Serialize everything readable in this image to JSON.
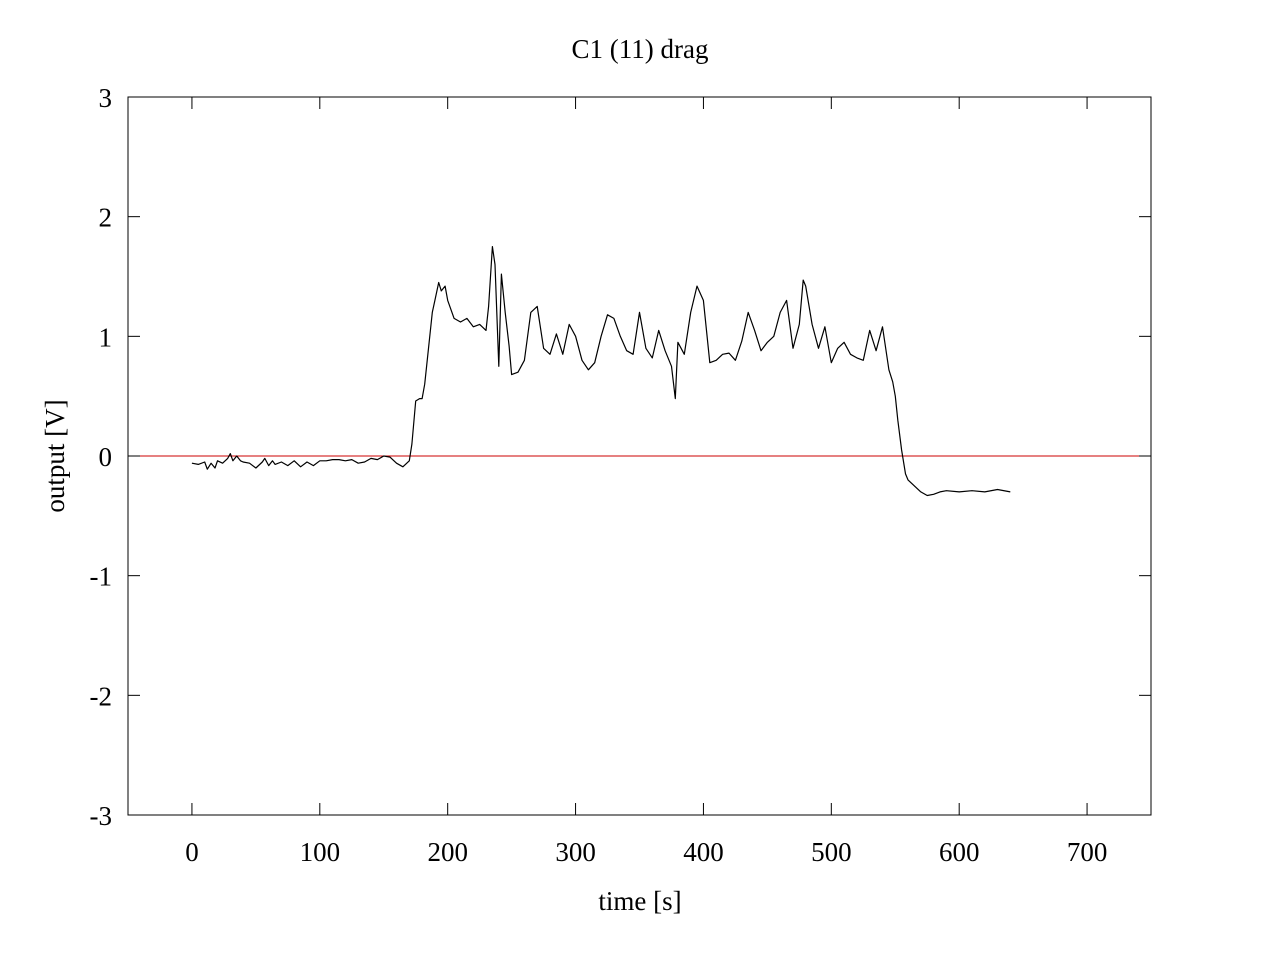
{
  "chart_data": {
    "type": "line",
    "title": "C1 (11) drag",
    "xlabel": "time [s]",
    "ylabel": "output [V]",
    "xlim": [
      -50,
      750
    ],
    "ylim": [
      -3,
      3
    ],
    "xticks": [
      0,
      100,
      200,
      300,
      400,
      500,
      600,
      700
    ],
    "yticks": [
      -3,
      -2,
      -1,
      0,
      1,
      2,
      3
    ],
    "xtick_labels": [
      "0",
      "100",
      "200",
      "300",
      "400",
      "500",
      "600",
      "700"
    ],
    "ytick_labels": [
      "-3",
      "-2",
      "-1",
      "0",
      "1",
      "2",
      "3"
    ],
    "grid": false,
    "legend": "none",
    "reference_line": {
      "y": 0,
      "color": "#cc0000"
    },
    "series": [
      {
        "color": "#000000",
        "x": [
          0,
          5,
          10,
          12,
          15,
          18,
          20,
          24,
          28,
          30,
          32,
          35,
          38,
          40,
          45,
          50,
          55,
          57,
          60,
          63,
          65,
          70,
          75,
          80,
          85,
          90,
          95,
          100,
          105,
          110,
          115,
          120,
          125,
          130,
          135,
          140,
          145,
          150,
          155,
          160,
          165,
          170,
          172,
          175,
          178,
          180,
          182,
          185,
          188,
          190,
          193,
          195,
          198,
          200,
          205,
          210,
          215,
          220,
          225,
          230,
          232,
          235,
          237,
          240,
          242,
          245,
          248,
          250,
          255,
          260,
          265,
          270,
          275,
          280,
          285,
          290,
          295,
          300,
          305,
          310,
          315,
          320,
          325,
          330,
          335,
          340,
          345,
          350,
          355,
          360,
          365,
          370,
          375,
          378,
          380,
          385,
          390,
          395,
          400,
          405,
          410,
          415,
          420,
          425,
          430,
          435,
          440,
          445,
          450,
          455,
          460,
          465,
          470,
          475,
          478,
          480,
          485,
          490,
          495,
          500,
          505,
          510,
          515,
          520,
          525,
          530,
          535,
          540,
          545,
          548,
          550,
          552,
          555,
          558,
          560,
          565,
          570,
          575,
          580,
          585,
          590,
          600,
          610,
          620,
          630,
          640
        ],
        "y": [
          -0.06,
          -0.07,
          -0.05,
          -0.11,
          -0.06,
          -0.1,
          -0.04,
          -0.06,
          -0.02,
          0.02,
          -0.04,
          0.0,
          -0.04,
          -0.05,
          -0.06,
          -0.1,
          -0.05,
          -0.02,
          -0.08,
          -0.04,
          -0.07,
          -0.05,
          -0.08,
          -0.04,
          -0.09,
          -0.05,
          -0.08,
          -0.04,
          -0.04,
          -0.03,
          -0.03,
          -0.04,
          -0.03,
          -0.06,
          -0.05,
          -0.02,
          -0.03,
          0.0,
          -0.01,
          -0.06,
          -0.09,
          -0.04,
          0.1,
          0.46,
          0.48,
          0.48,
          0.6,
          0.9,
          1.2,
          1.3,
          1.45,
          1.38,
          1.42,
          1.3,
          1.15,
          1.12,
          1.15,
          1.08,
          1.1,
          1.05,
          1.25,
          1.75,
          1.6,
          0.75,
          1.52,
          1.2,
          0.92,
          0.68,
          0.7,
          0.8,
          1.2,
          1.25,
          0.9,
          0.85,
          1.02,
          0.85,
          1.1,
          1.0,
          0.8,
          0.72,
          0.78,
          1.0,
          1.18,
          1.15,
          1.0,
          0.88,
          0.85,
          1.2,
          0.9,
          0.82,
          1.05,
          0.88,
          0.75,
          0.48,
          0.95,
          0.85,
          1.2,
          1.42,
          1.3,
          0.78,
          0.8,
          0.85,
          0.86,
          0.8,
          0.96,
          1.2,
          1.05,
          0.88,
          0.95,
          1.0,
          1.2,
          1.3,
          0.9,
          1.1,
          1.47,
          1.42,
          1.1,
          0.9,
          1.08,
          0.78,
          0.9,
          0.95,
          0.85,
          0.82,
          0.8,
          1.05,
          0.88,
          1.08,
          0.72,
          0.62,
          0.5,
          0.3,
          0.05,
          -0.15,
          -0.2,
          -0.25,
          -0.3,
          -0.33,
          -0.32,
          -0.3,
          -0.29,
          -0.3,
          -0.29,
          -0.3,
          -0.28,
          -0.3
        ]
      }
    ]
  }
}
